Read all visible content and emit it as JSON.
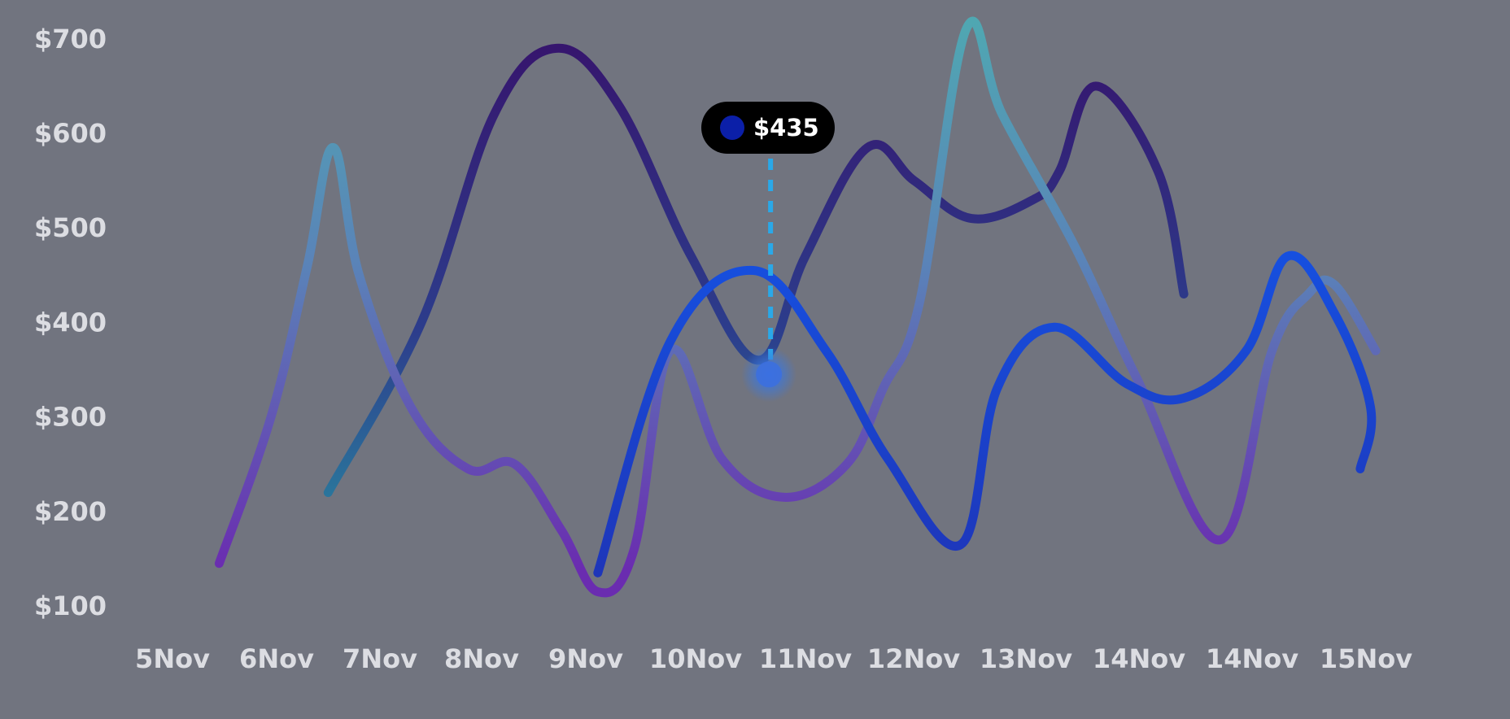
{
  "chart_data": {
    "type": "line",
    "categories": [
      "5Nov",
      "6Nov",
      "7Nov",
      "8Nov",
      "9Nov",
      "10Nov",
      "11Nov",
      "12Nov",
      "13Nov",
      "14Nov",
      "14Nov",
      "15Nov"
    ],
    "yticks": [
      "$100",
      "$200",
      "$300",
      "$400",
      "$500",
      "$600",
      "$700"
    ],
    "ylim": [
      100,
      700
    ],
    "grid": false,
    "colors": {
      "background": "#71747f",
      "violet": "#6a2fb0",
      "teal": "#4a98a8",
      "indigo": "#2e1f6e",
      "blue": "#1745d8",
      "tooltip_dot": "#0b1fa8",
      "guide": "#2aa8e8"
    },
    "series": [
      {
        "values": [
          {
            "x": 0.45,
            "y": 145
          },
          {
            "x": 0.95,
            "y": 300
          },
          {
            "x": 1.3,
            "y": 460
          },
          {
            "x": 1.55,
            "y": 585
          },
          {
            "x": 1.8,
            "y": 450
          },
          {
            "x": 2.3,
            "y": 310
          },
          {
            "x": 2.85,
            "y": 245
          },
          {
            "x": 3.3,
            "y": 250
          },
          {
            "x": 3.75,
            "y": 180
          },
          {
            "x": 4.1,
            "y": 115
          },
          {
            "x": 4.45,
            "y": 160
          },
          {
            "x": 4.8,
            "y": 370
          },
          {
            "x": 5.3,
            "y": 255
          },
          {
            "x": 5.9,
            "y": 215
          },
          {
            "x": 6.5,
            "y": 250
          },
          {
            "x": 6.85,
            "y": 330
          },
          {
            "x": 7.2,
            "y": 420
          },
          {
            "x": 7.65,
            "y": 710
          },
          {
            "x": 8.0,
            "y": 620
          },
          {
            "x": 8.7,
            "y": 480
          },
          {
            "x": 9.3,
            "y": 340
          },
          {
            "x": 10.1,
            "y": 170
          },
          {
            "x": 10.6,
            "y": 370
          },
          {
            "x": 10.95,
            "y": 430
          },
          {
            "x": 11.2,
            "y": 440
          },
          {
            "x": 11.6,
            "y": 370
          }
        ]
      },
      {
        "values": [
          {
            "x": 1.5,
            "y": 220
          },
          {
            "x": 2.4,
            "y": 400
          },
          {
            "x": 3.1,
            "y": 620
          },
          {
            "x": 3.7,
            "y": 690
          },
          {
            "x": 4.3,
            "y": 630
          },
          {
            "x": 5.0,
            "y": 470
          },
          {
            "x": 5.65,
            "y": 360
          },
          {
            "x": 6.1,
            "y": 470
          },
          {
            "x": 6.7,
            "y": 585
          },
          {
            "x": 7.15,
            "y": 550
          },
          {
            "x": 7.7,
            "y": 510
          },
          {
            "x": 8.3,
            "y": 530
          },
          {
            "x": 8.55,
            "y": 560
          },
          {
            "x": 8.9,
            "y": 650
          },
          {
            "x": 9.5,
            "y": 560
          },
          {
            "x": 9.75,
            "y": 430
          }
        ]
      },
      {
        "values": [
          {
            "x": 4.1,
            "y": 135
          },
          {
            "x": 4.8,
            "y": 380
          },
          {
            "x": 5.6,
            "y": 455
          },
          {
            "x": 6.3,
            "y": 370
          },
          {
            "x": 6.9,
            "y": 255
          },
          {
            "x": 7.6,
            "y": 165
          },
          {
            "x": 7.95,
            "y": 330
          },
          {
            "x": 8.5,
            "y": 395
          },
          {
            "x": 9.2,
            "y": 335
          },
          {
            "x": 9.75,
            "y": 320
          },
          {
            "x": 10.35,
            "y": 370
          },
          {
            "x": 10.75,
            "y": 470
          },
          {
            "x": 11.2,
            "y": 410
          },
          {
            "x": 11.55,
            "y": 310
          },
          {
            "x": 11.45,
            "y": 245
          }
        ]
      }
    ],
    "tooltip": {
      "label": "$435",
      "x": 5.75,
      "y": 345
    }
  }
}
